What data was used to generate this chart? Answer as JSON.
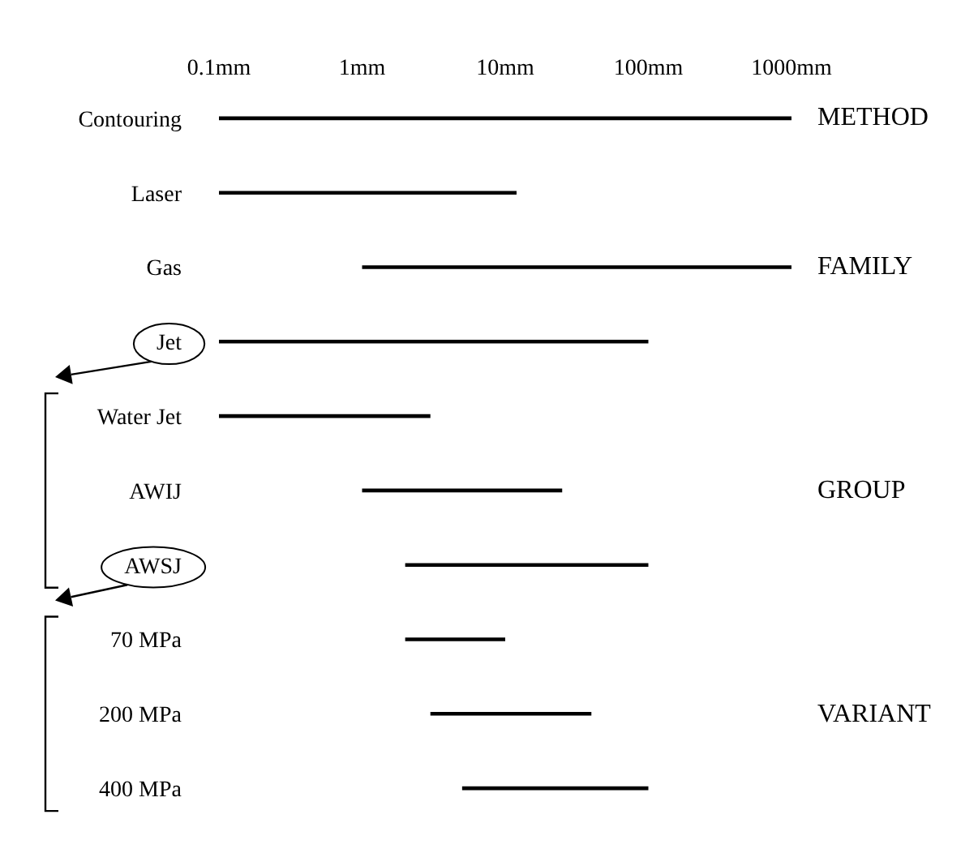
{
  "chart_data": {
    "type": "bar",
    "orientation": "horizontal",
    "categories": [
      "Contouring",
      "Laser",
      "Gas",
      "Jet",
      "Water Jet",
      "AWIJ",
      "AWSJ",
      "70 MPa",
      "200 MPa",
      "400 MPa"
    ],
    "base": [
      0.1,
      0.1,
      1,
      0.1,
      0.1,
      1,
      2,
      2,
      3,
      5
    ],
    "values": [
      999.9,
      11.9,
      999,
      99.9,
      2.9,
      24,
      98,
      8,
      37,
      95
    ],
    "color": "#000000",
    "log": "x",
    "xlim": [
      0.1,
      1000
    ],
    "xticks": [
      {
        "value": 0.1,
        "label": "0.1mm"
      },
      {
        "value": 1,
        "label": "1mm"
      },
      {
        "value": 10,
        "label": "10mm"
      },
      {
        "value": 100,
        "label": "100mm"
      },
      {
        "value": 1000,
        "label": "1000mm"
      }
    ],
    "annotations": [
      "METHOD",
      "FAMILY",
      "GROUP",
      "VARIANT"
    ]
  }
}
